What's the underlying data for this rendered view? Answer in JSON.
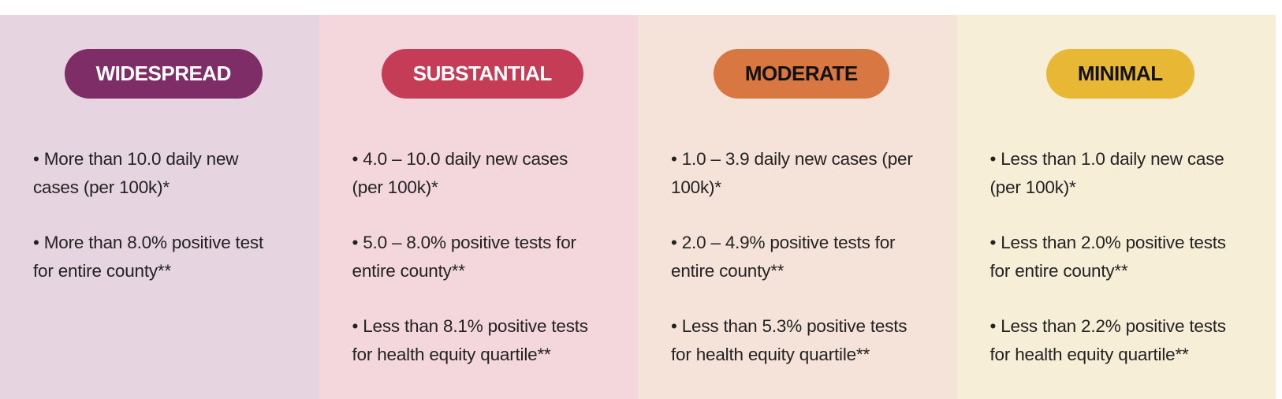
{
  "levels": [
    {
      "label": "WIDESPREAD",
      "pill_color": "#7e2d66",
      "label_color": "#ffffff",
      "background": "#e6d4e0",
      "criteria": [
        [
          "• More than 10.0 daily new",
          "cases (per 100k)*"
        ],
        [
          "• More than 8.0% positive test",
          "for entire county**"
        ]
      ]
    },
    {
      "label": "SUBSTANTIAL",
      "pill_color": "#c43c55",
      "label_color": "#ffffff",
      "background": "#f3d7dd",
      "criteria": [
        [
          "• 4.0 – 10.0 daily new cases",
          "(per 100k)*"
        ],
        [
          "• 5.0 – 8.0% positive tests for",
          "entire county**"
        ],
        [
          "• Less than 8.1% positive tests",
          "for health equity quartile**"
        ]
      ]
    },
    {
      "label": "MODERATE",
      "pill_color": "#d97742",
      "label_color": "#111111",
      "background": "#f5e3da",
      "criteria": [
        [
          "• 1.0 – 3.9 daily new cases (per",
          "100k)*"
        ],
        [
          "• 2.0 – 4.9% positive tests for",
          "entire county**"
        ],
        [
          "• Less than 5.3% positive tests",
          "for health equity quartile**"
        ]
      ]
    },
    {
      "label": "MINIMAL",
      "pill_color": "#e8b835",
      "label_color": "#111111",
      "background": "#f7eed8",
      "criteria": [
        [
          "• Less than 1.0 daily new case",
          "(per 100k)*"
        ],
        [
          "• Less than 2.0% positive tests",
          "for entire county**"
        ],
        [
          "• Less than 2.2% positive tests",
          "for health equity quartile**"
        ]
      ]
    }
  ]
}
